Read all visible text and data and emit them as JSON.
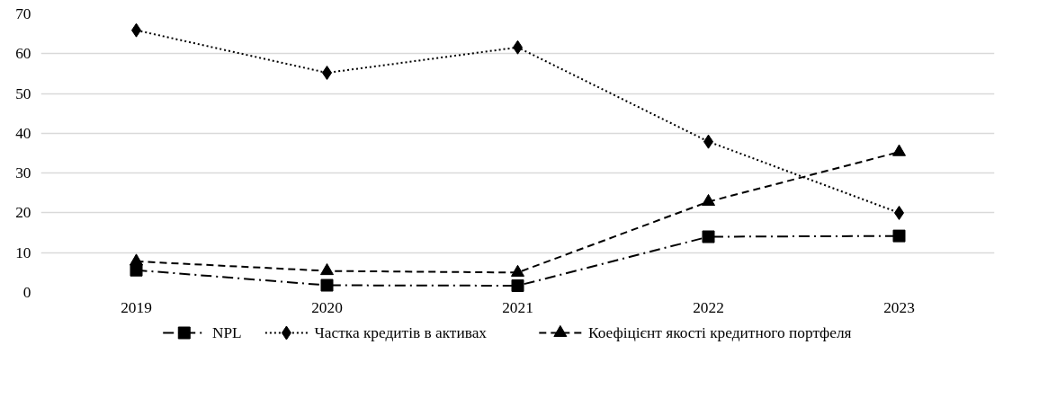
{
  "chart_data": {
    "type": "line",
    "categories": [
      "2019",
      "2020",
      "2021",
      "2022",
      "2023"
    ],
    "series": [
      {
        "name": "NPL",
        "color": "#000000",
        "marker": "square",
        "line_style": "dashdot",
        "values": [
          5.6,
          1.8,
          1.7,
          14.0,
          14.2
        ]
      },
      {
        "name": "Частка кредитів в активах",
        "color": "#000000",
        "marker": "diamond",
        "line_style": "dotted",
        "values": [
          65.9,
          55.2,
          61.6,
          37.9,
          20.0
        ]
      },
      {
        "name": "Коефіцієнт якості кредитного портфеля",
        "color": "#000000",
        "marker": "triangle",
        "line_style": "dashed",
        "values": [
          7.8,
          5.4,
          5.0,
          22.8,
          35.3
        ]
      }
    ],
    "ylim": [
      0,
      70
    ],
    "yticks": [
      0,
      10,
      20,
      30,
      40,
      50,
      60,
      70
    ],
    "grid": "y",
    "legend": "bottom"
  }
}
